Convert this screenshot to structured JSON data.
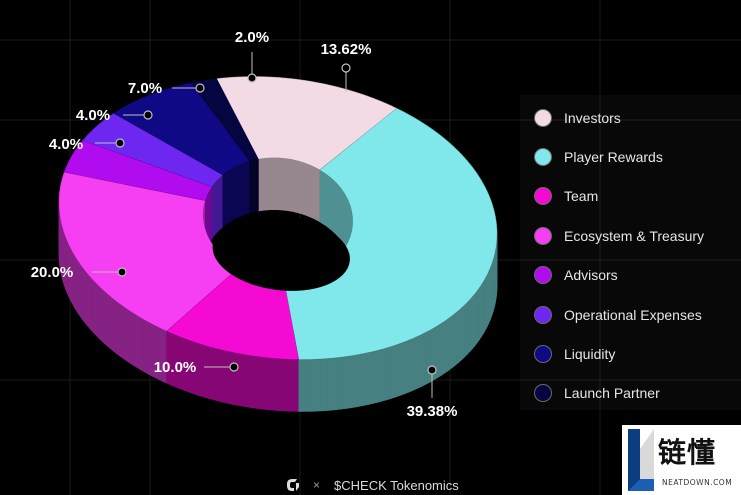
{
  "chart_data": {
    "type": "pie",
    "title": "",
    "categories": [
      "Investors",
      "Player Rewards",
      "Team",
      "Ecosystem & Treasury",
      "Advisors",
      "Operational Expenses",
      "Liquidity",
      "Launch Partner"
    ],
    "values": [
      13.62,
      39.38,
      10.0,
      20.0,
      4.0,
      4.0,
      7.0,
      2.0
    ],
    "labels": [
      "13.62%",
      "39.38%",
      "10.0%",
      "20.0%",
      "4.0%",
      "4.0%",
      "7.0%",
      "2.0%"
    ],
    "colors": [
      "#f3dbe6",
      "#80e8eb",
      "#f50ad4",
      "#f63ef2",
      "#b10cf0",
      "#6d27f0",
      "#100985",
      "#050641"
    ],
    "legend_position": "right",
    "donut": true
  },
  "footer": {
    "separator": "×",
    "text": "$CHECK Tokenomics",
    "logo_icon": "check-logo-icon"
  },
  "watermark": {
    "title": "链懂",
    "subtitle": "NEATDOWN.COM"
  }
}
